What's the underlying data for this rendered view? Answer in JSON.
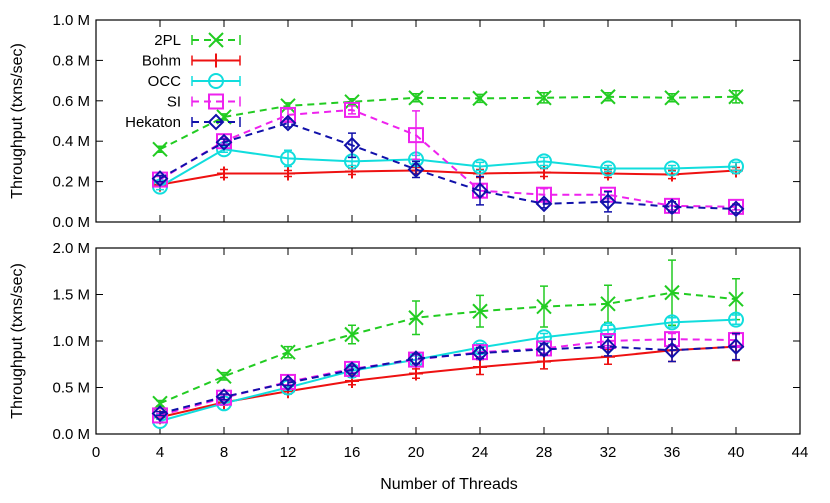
{
  "chart_data": [
    {
      "type": "line",
      "title": "",
      "xlabel": "",
      "ylabel": "Throughput (txns/sec)",
      "xlim": [
        0,
        44
      ],
      "ylim": [
        0,
        1.0
      ],
      "x_ticks": [
        "0",
        "4",
        "8",
        "12",
        "16",
        "20",
        "24",
        "28",
        "32",
        "36",
        "40",
        "44"
      ],
      "y_ticks": [
        "0.0 M",
        "0.2 M",
        "0.4 M",
        "0.6 M",
        "0.8 M",
        "1.0 M"
      ],
      "y_tick_values": [
        0,
        0.2,
        0.4,
        0.6,
        0.8,
        1.0
      ],
      "x_tick_labels_shown": false,
      "grid": false,
      "legend_position": "top-left",
      "x": [
        4,
        8,
        12,
        16,
        20,
        24,
        28,
        32,
        36,
        40
      ],
      "series": [
        {
          "name": "2PL",
          "color": "#22cc22",
          "marker": "x",
          "dash": true,
          "values": [
            0.36,
            0.52,
            0.575,
            0.595,
            0.615,
            0.612,
            0.615,
            0.62,
            0.615,
            0.62
          ],
          "errors": [
            0.015,
            0.015,
            0.015,
            0.015,
            0.02,
            0.02,
            0.025,
            0.02,
            0.02,
            0.03
          ]
        },
        {
          "name": "Bohm",
          "color": "#ee1111",
          "marker": "plus",
          "dash": false,
          "values": [
            0.185,
            0.24,
            0.24,
            0.25,
            0.255,
            0.24,
            0.245,
            0.24,
            0.235,
            0.255
          ],
          "errors": [
            0.01,
            0.02,
            0.015,
            0.015,
            0.015,
            0.02,
            0.02,
            0.02,
            0.02,
            0.015
          ]
        },
        {
          "name": "OCC",
          "color": "#11dddd",
          "marker": "circle",
          "dash": false,
          "values": [
            0.175,
            0.36,
            0.315,
            0.3,
            0.31,
            0.275,
            0.3,
            0.265,
            0.265,
            0.275
          ],
          "errors": [
            0.015,
            0.015,
            0.04,
            0.02,
            0.02,
            0.02,
            0.02,
            0.015,
            0.015,
            0.02
          ]
        },
        {
          "name": "SI",
          "color": "#ee22ee",
          "marker": "square",
          "dash": true,
          "values": [
            0.21,
            0.4,
            0.53,
            0.555,
            0.43,
            0.155,
            0.135,
            0.135,
            0.08,
            0.075
          ],
          "errors": [
            0.015,
            0.015,
            0.03,
            0.02,
            0.12,
            0.03,
            0.03,
            0.02,
            0.02,
            0.015
          ]
        },
        {
          "name": "Hekaton",
          "color": "#1111aa",
          "marker": "diamond",
          "dash": true,
          "values": [
            0.215,
            0.395,
            0.49,
            0.38,
            0.26,
            0.155,
            0.09,
            0.1,
            0.075,
            0.065
          ],
          "errors": [
            0.015,
            0.015,
            0.02,
            0.06,
            0.04,
            0.07,
            0.02,
            0.05,
            0.025,
            0.02
          ]
        }
      ]
    },
    {
      "type": "line",
      "title": "",
      "xlabel": "Number of Threads",
      "ylabel": "Throughput (txns/sec)",
      "xlim": [
        0,
        44
      ],
      "ylim": [
        0,
        2.0
      ],
      "x_ticks": [
        "0",
        "4",
        "8",
        "12",
        "16",
        "20",
        "24",
        "28",
        "32",
        "36",
        "40",
        "44"
      ],
      "y_ticks": [
        "0.0 M",
        "0.5 M",
        "1.0 M",
        "1.5 M",
        "2.0 M"
      ],
      "y_tick_values": [
        0,
        0.5,
        1.0,
        1.5,
        2.0
      ],
      "x_tick_labels_shown": true,
      "grid": false,
      "x": [
        4,
        8,
        12,
        16,
        20,
        24,
        28,
        32,
        36,
        40
      ],
      "series": [
        {
          "name": "2PL",
          "color": "#22cc22",
          "marker": "x",
          "dash": true,
          "values": [
            0.33,
            0.62,
            0.88,
            1.07,
            1.25,
            1.32,
            1.37,
            1.4,
            1.52,
            1.45
          ],
          "errors": [
            0.03,
            0.04,
            0.06,
            0.1,
            0.18,
            0.17,
            0.22,
            0.2,
            0.35,
            0.22
          ]
        },
        {
          "name": "Bohm",
          "color": "#ee1111",
          "marker": "plus",
          "dash": false,
          "values": [
            0.18,
            0.34,
            0.46,
            0.57,
            0.65,
            0.72,
            0.78,
            0.83,
            0.9,
            0.94
          ],
          "errors": [
            0.02,
            0.03,
            0.03,
            0.04,
            0.05,
            0.08,
            0.08,
            0.08,
            0.12,
            0.15
          ]
        },
        {
          "name": "OCC",
          "color": "#11dddd",
          "marker": "circle",
          "dash": false,
          "values": [
            0.14,
            0.33,
            0.5,
            0.68,
            0.8,
            0.93,
            1.04,
            1.12,
            1.2,
            1.23
          ],
          "errors": [
            0.02,
            0.02,
            0.03,
            0.03,
            0.04,
            0.04,
            0.04,
            0.05,
            0.05,
            0.05
          ]
        },
        {
          "name": "SI",
          "color": "#ee22ee",
          "marker": "square",
          "dash": true,
          "values": [
            0.2,
            0.39,
            0.56,
            0.7,
            0.8,
            0.88,
            0.92,
            1.0,
            1.02,
            1.01
          ],
          "errors": [
            0.02,
            0.03,
            0.03,
            0.04,
            0.05,
            0.05,
            0.05,
            0.05,
            0.06,
            0.06
          ]
        },
        {
          "name": "Hekaton",
          "color": "#1111aa",
          "marker": "diamond",
          "dash": true,
          "values": [
            0.22,
            0.4,
            0.55,
            0.69,
            0.81,
            0.87,
            0.91,
            0.94,
            0.9,
            0.94
          ],
          "errors": [
            0.02,
            0.03,
            0.03,
            0.04,
            0.05,
            0.06,
            0.06,
            0.1,
            0.12,
            0.14
          ]
        }
      ]
    }
  ]
}
